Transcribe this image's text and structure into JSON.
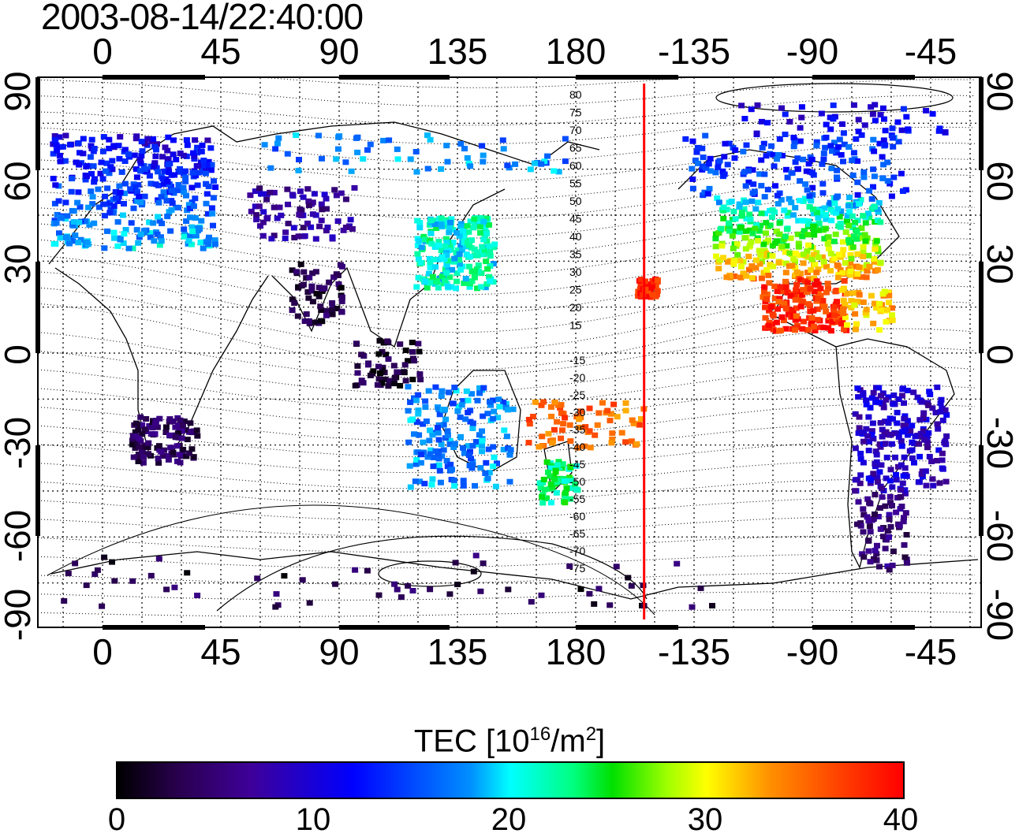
{
  "title": "2003-08-14/22:40:00",
  "map": {
    "lon_ticks_top": [
      "0",
      "45",
      "90",
      "135",
      "180",
      "-135",
      "-90",
      "-45"
    ],
    "lon_ticks_bottom": [
      "0",
      "45",
      "90",
      "135",
      "180",
      "-135",
      "-90",
      "-45"
    ],
    "lat_ticks_left": [
      "90",
      "60",
      "30",
      "0",
      "-30",
      "-60",
      "-90"
    ],
    "lat_ticks_right": [
      "90",
      "60",
      "30",
      "0",
      "-30",
      "-60",
      "-90"
    ],
    "contour_labels": [
      "80",
      "75",
      "70",
      "65",
      "60",
      "55",
      "50",
      "45",
      "40",
      "35",
      "30",
      "25",
      "20",
      "15",
      "-15",
      "-20",
      "-25",
      "-30",
      "-35",
      "-40",
      "-45",
      "-50",
      "-55",
      "-60",
      "-65",
      "-70",
      "-75"
    ],
    "meridian_marker_lon": -154,
    "meridian_marker_color": "#ff0000"
  },
  "colorbar": {
    "title_prefix": "TEC  [10",
    "title_exp1": "16",
    "title_mid": "/m",
    "title_exp2": "2",
    "title_suffix": "]",
    "ticks": [
      "0",
      "10",
      "20",
      "30",
      "40"
    ],
    "range": [
      0,
      40
    ]
  },
  "tec_regions": [
    {
      "name": "europe",
      "tec": 10
    },
    {
      "name": "north-america",
      "tec": 22
    },
    {
      "name": "central-america",
      "tec": 38
    },
    {
      "name": "east-asia",
      "tec": 21
    },
    {
      "name": "south-america",
      "tec": 9
    },
    {
      "name": "australia",
      "tec": 17
    },
    {
      "name": "south-pacific",
      "tec": 35
    },
    {
      "name": "antarctica",
      "tec": 3
    }
  ]
}
